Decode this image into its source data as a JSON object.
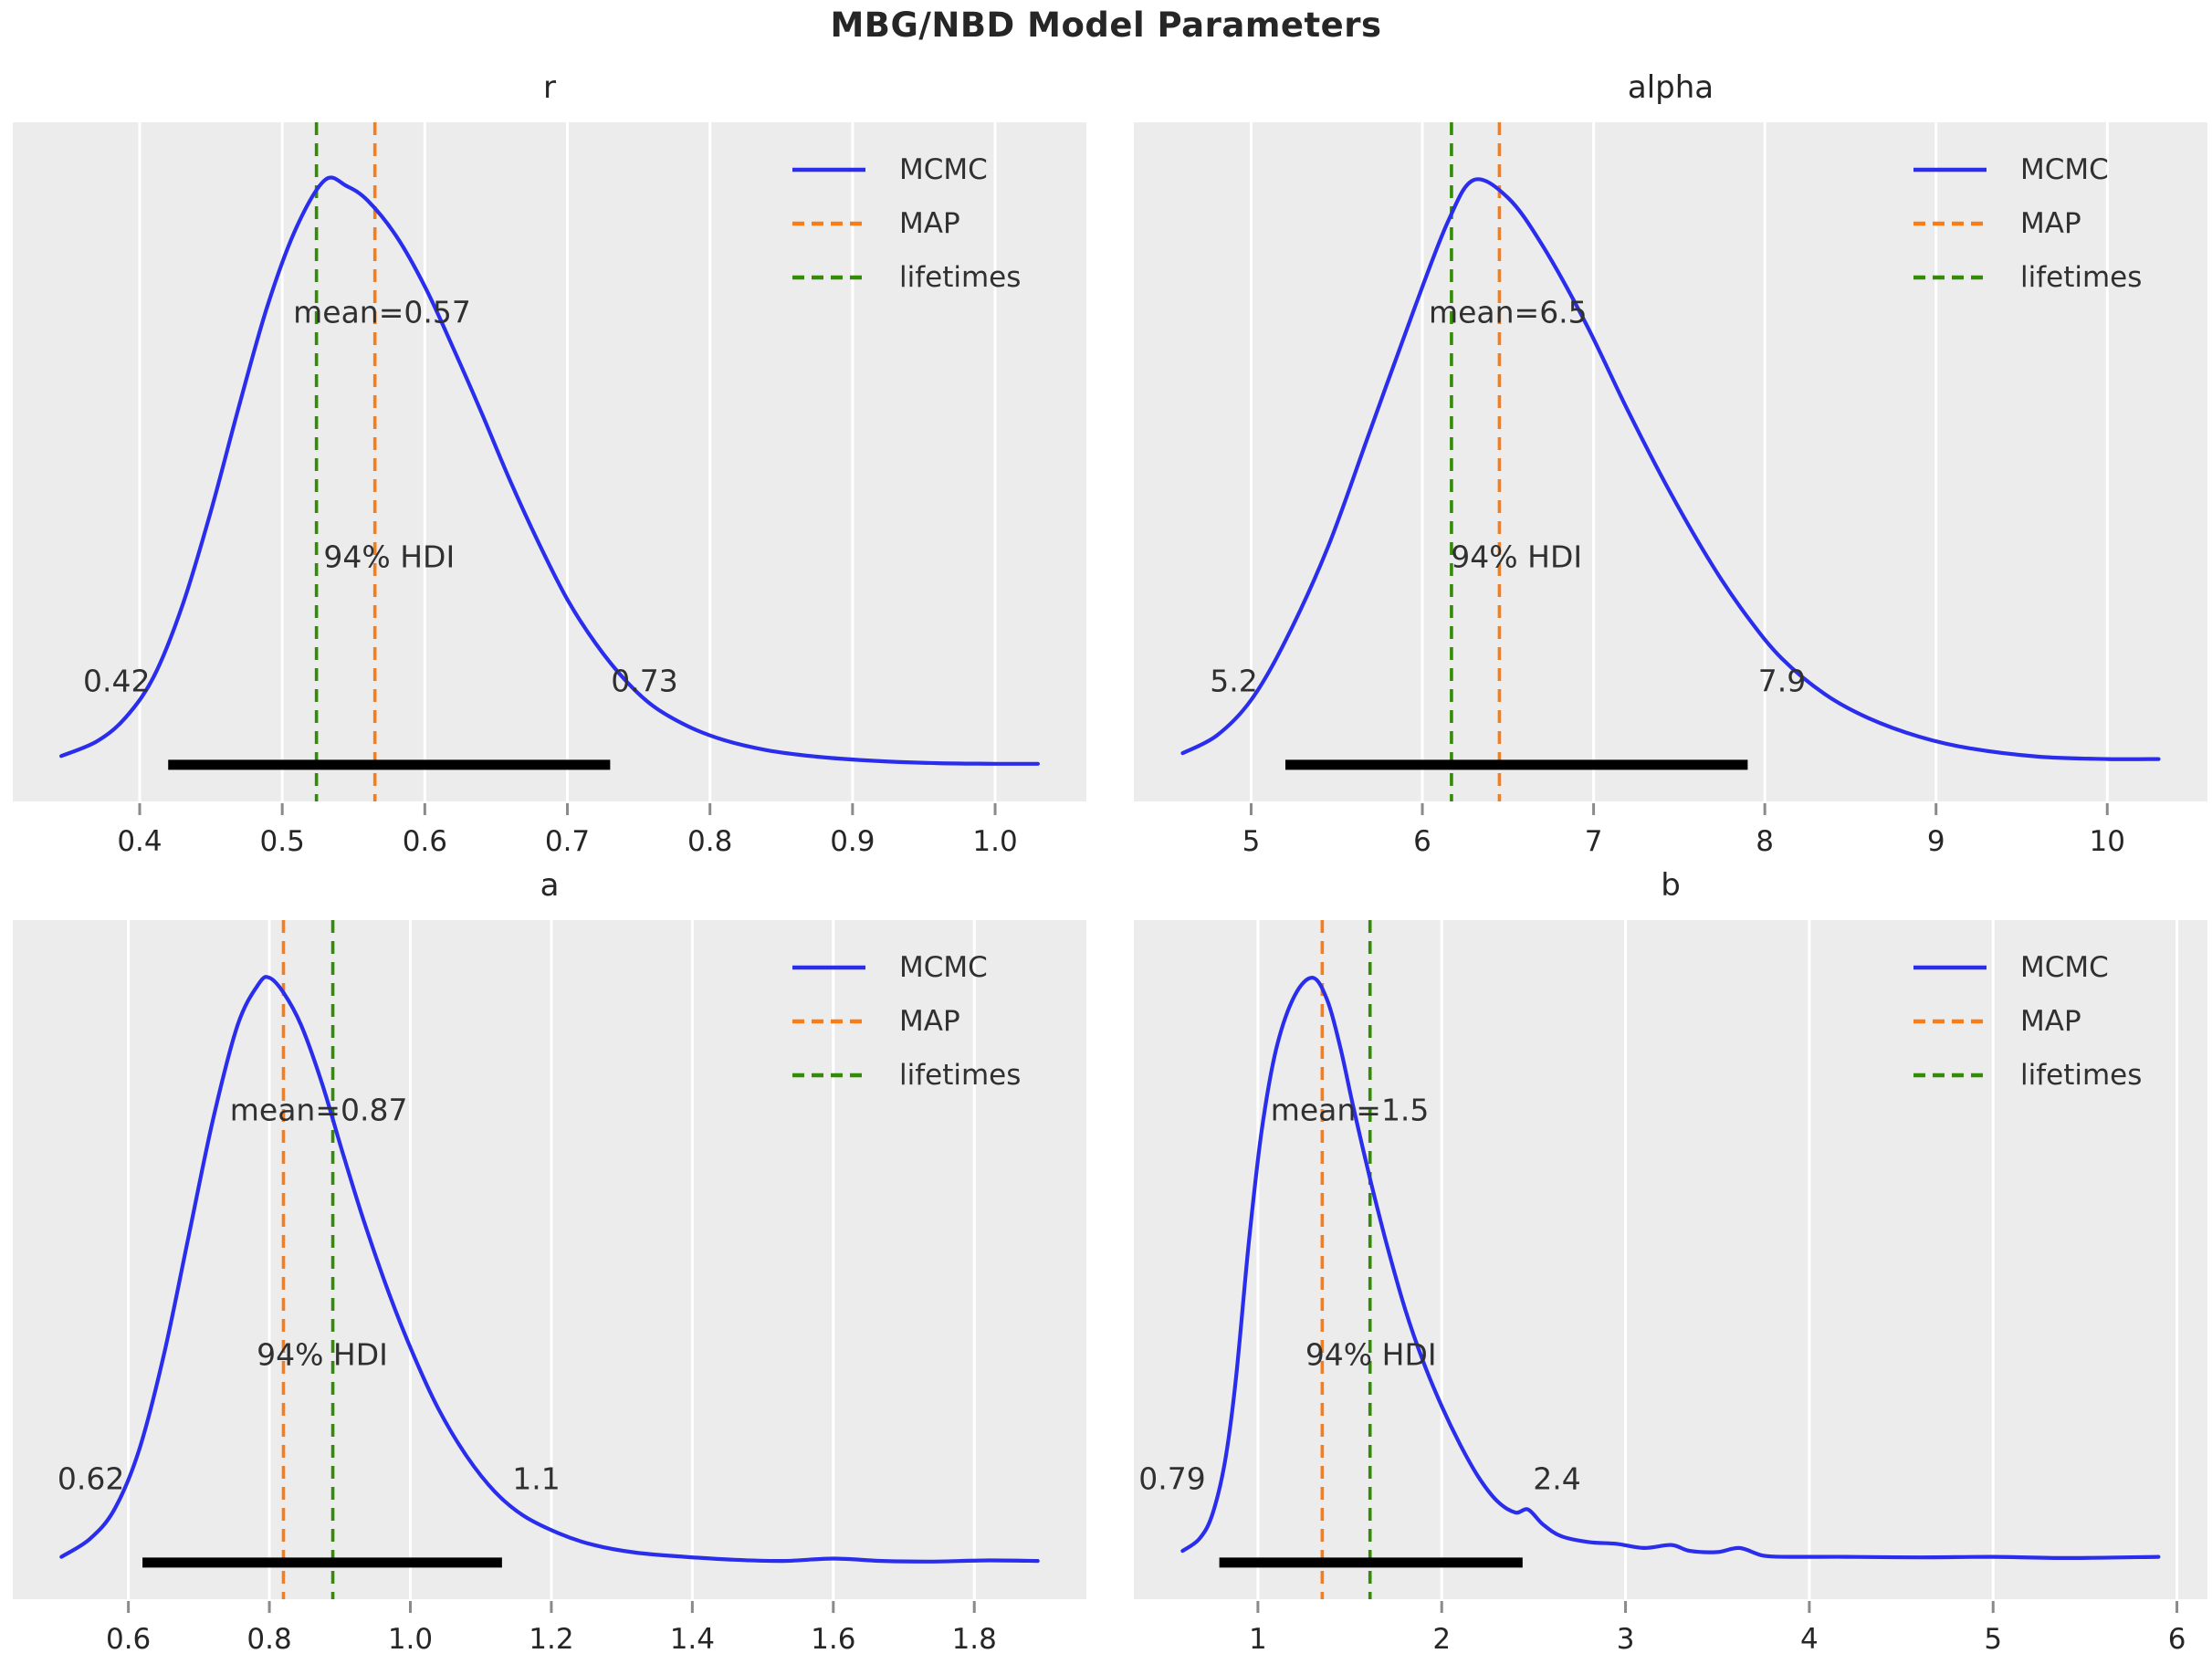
{
  "figure": {
    "title": "MBG/NBD Model Parameters",
    "background": "#ffffff",
    "axes_background": "#ececec",
    "gridline_color": "#ffffff",
    "tick_color": "#8a8a8a",
    "text_color": "#262626",
    "annotation_color": "#303030",
    "hdi_bar_color": "#000000",
    "mcmc_color": "#2a2eec",
    "map_color": "#fa7c17",
    "lifetimes_color": "#328c06"
  },
  "legend": {
    "entries": [
      {
        "label": "MCMC",
        "color": "#2a2eec",
        "style": "solid"
      },
      {
        "label": "MAP",
        "color": "#fa7c17",
        "style": "dashed"
      },
      {
        "label": "lifetimes",
        "color": "#328c06",
        "style": "dashed"
      }
    ]
  },
  "chart_data": [
    {
      "type": "line",
      "title": "r",
      "series_name": "MCMC posterior KDE",
      "mean": 0.57,
      "mean_label": "mean=0.57",
      "map_value": 0.565,
      "lifetimes_value": 0.524,
      "hdi": {
        "lo": 0.42,
        "hi": 0.73,
        "lo_label": "0.42",
        "hi_label": "0.73",
        "label": "94% HDI"
      },
      "xlim": [
        0.311,
        1.064
      ],
      "xticks": [
        0.4,
        0.5,
        0.6,
        0.7,
        0.8,
        0.9,
        1.0
      ],
      "xtick_labels": [
        "0.4",
        "0.5",
        "0.6",
        "0.7",
        "0.8",
        "0.9",
        "1.0"
      ],
      "grid": true,
      "legend_position": "upper right",
      "kde": {
        "x": [
          0.345,
          0.37,
          0.39,
          0.41,
          0.43,
          0.45,
          0.47,
          0.49,
          0.51,
          0.53,
          0.545,
          0.56,
          0.58,
          0.6,
          0.62,
          0.64,
          0.66,
          0.68,
          0.7,
          0.72,
          0.74,
          0.76,
          0.785,
          0.81,
          0.84,
          0.875,
          0.915,
          0.96,
          1.0,
          1.03
        ],
        "density": [
          0.025,
          0.05,
          0.09,
          0.16,
          0.28,
          0.44,
          0.62,
          0.79,
          0.92,
          1.0,
          0.99,
          0.965,
          0.905,
          0.82,
          0.715,
          0.605,
          0.49,
          0.385,
          0.29,
          0.215,
          0.155,
          0.11,
          0.075,
          0.052,
          0.035,
          0.024,
          0.017,
          0.013,
          0.012,
          0.012
        ]
      }
    },
    {
      "type": "line",
      "title": "alpha",
      "series_name": "MCMC posterior KDE",
      "mean": 6.5,
      "mean_label": "mean=6.5",
      "map_value": 6.45,
      "lifetimes_value": 6.17,
      "hdi": {
        "lo": 5.2,
        "hi": 7.9,
        "lo_label": "5.2",
        "hi_label": "7.9",
        "label": "94% HDI"
      },
      "xlim": [
        4.315,
        10.585
      ],
      "xticks": [
        5,
        6,
        7,
        8,
        9,
        10
      ],
      "xtick_labels": [
        "5",
        "6",
        "7",
        "8",
        "9",
        "10"
      ],
      "grid": true,
      "legend_position": "upper right",
      "kde": {
        "x": [
          4.6,
          4.8,
          5.0,
          5.2,
          5.45,
          5.7,
          5.95,
          6.15,
          6.3,
          6.5,
          6.7,
          6.95,
          7.2,
          7.45,
          7.7,
          7.9,
          8.1,
          8.35,
          8.6,
          8.9,
          9.2,
          9.6,
          10.0,
          10.3
        ],
        "density": [
          0.03,
          0.06,
          0.12,
          0.22,
          0.38,
          0.58,
          0.78,
          0.93,
          1.0,
          0.97,
          0.89,
          0.76,
          0.61,
          0.47,
          0.345,
          0.26,
          0.19,
          0.13,
          0.09,
          0.058,
          0.038,
          0.024,
          0.02,
          0.02
        ]
      }
    },
    {
      "type": "line",
      "title": "a",
      "series_name": "MCMC posterior KDE",
      "mean": 0.87,
      "mean_label": "mean=0.87",
      "map_value": 0.82,
      "lifetimes_value": 0.89,
      "hdi": {
        "lo": 0.62,
        "hi": 1.13,
        "lo_label": "0.62",
        "hi_label": "1.1",
        "label": "94% HDI"
      },
      "xlim": [
        0.436,
        1.959
      ],
      "xticks": [
        0.6,
        0.8,
        1.0,
        1.2,
        1.4,
        1.6,
        1.8
      ],
      "xtick_labels": [
        "0.6",
        "0.8",
        "1.0",
        "1.2",
        "1.4",
        "1.6",
        "1.8"
      ],
      "grid": true,
      "legend_position": "upper right",
      "kde": {
        "x": [
          0.505,
          0.545,
          0.58,
          0.615,
          0.65,
          0.685,
          0.72,
          0.755,
          0.785,
          0.8,
          0.82,
          0.845,
          0.875,
          0.905,
          0.935,
          0.97,
          1.005,
          1.04,
          1.08,
          1.12,
          1.16,
          1.21,
          1.26,
          1.32,
          1.39,
          1.46,
          1.53,
          1.6,
          1.67,
          1.74,
          1.82,
          1.89
        ],
        "density": [
          0.02,
          0.05,
          0.1,
          0.2,
          0.36,
          0.56,
          0.76,
          0.92,
          0.99,
          1.0,
          0.975,
          0.92,
          0.82,
          0.7,
          0.585,
          0.465,
          0.36,
          0.27,
          0.19,
          0.13,
          0.09,
          0.06,
          0.04,
          0.027,
          0.02,
          0.015,
          0.013,
          0.017,
          0.013,
          0.012,
          0.014,
          0.013
        ]
      }
    },
    {
      "type": "line",
      "title": "b",
      "series_name": "MCMC posterior KDE",
      "mean": 1.5,
      "mean_label": "mean=1.5",
      "map_value": 1.35,
      "lifetimes_value": 1.61,
      "hdi": {
        "lo": 0.79,
        "hi": 2.44,
        "lo_label": "0.79",
        "hi_label": "2.4",
        "label": "94% HDI"
      },
      "xlim": [
        0.325,
        6.166
      ],
      "xticks": [
        1,
        2,
        3,
        4,
        5,
        6
      ],
      "xtick_labels": [
        "1",
        "2",
        "3",
        "4",
        "5",
        "6"
      ],
      "grid": true,
      "legend_position": "upper right",
      "kde": {
        "x": [
          0.59,
          0.68,
          0.75,
          0.82,
          0.88,
          0.95,
          1.02,
          1.1,
          1.2,
          1.3,
          1.38,
          1.45,
          1.52,
          1.61,
          1.7,
          1.8,
          1.9,
          2.0,
          2.1,
          2.2,
          2.3,
          2.4,
          2.47,
          2.55,
          2.65,
          2.8,
          2.95,
          3.1,
          3.25,
          3.35,
          3.5,
          3.62,
          3.75,
          3.9,
          4.2,
          4.6,
          5.0,
          5.4,
          5.9
        ],
        "density": [
          0.03,
          0.05,
          0.09,
          0.18,
          0.32,
          0.55,
          0.74,
          0.88,
          0.97,
          1.0,
          0.96,
          0.88,
          0.78,
          0.66,
          0.55,
          0.44,
          0.35,
          0.275,
          0.21,
          0.155,
          0.115,
          0.095,
          0.1,
          0.075,
          0.055,
          0.045,
          0.042,
          0.035,
          0.04,
          0.03,
          0.028,
          0.035,
          0.022,
          0.02,
          0.02,
          0.019,
          0.02,
          0.018,
          0.02
        ]
      }
    }
  ]
}
